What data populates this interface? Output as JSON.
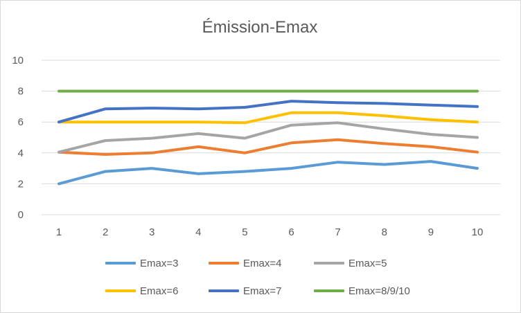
{
  "chart_data": {
    "type": "line",
    "title": "Émission-Emax",
    "xlabel": "",
    "ylabel": "",
    "x": [
      1,
      2,
      3,
      4,
      5,
      6,
      7,
      8,
      9,
      10
    ],
    "x_tick_labels": [
      "1",
      "2",
      "3",
      "4",
      "5",
      "6",
      "7",
      "8",
      "9",
      "10"
    ],
    "ylim": [
      0,
      10
    ],
    "y_tick_labels": [
      "0",
      "2",
      "4",
      "6",
      "8",
      "10"
    ],
    "grid": "horizontal",
    "legend_position": "bottom",
    "series": [
      {
        "name": "Emax=3",
        "color": "#5b9bd5",
        "values": [
          2.0,
          2.8,
          3.0,
          2.65,
          2.8,
          3.0,
          3.4,
          3.25,
          3.45,
          3.0
        ]
      },
      {
        "name": "Emax=4",
        "color": "#ed7d31",
        "values": [
          4.05,
          3.9,
          4.0,
          4.4,
          4.0,
          4.65,
          4.85,
          4.6,
          4.4,
          4.05
        ]
      },
      {
        "name": "Emax=5",
        "color": "#a5a5a5",
        "values": [
          4.05,
          4.8,
          4.95,
          5.25,
          4.95,
          5.8,
          5.95,
          5.55,
          5.2,
          5.0
        ]
      },
      {
        "name": "Emax=6",
        "color": "#ffc000",
        "values": [
          6.0,
          6.0,
          6.0,
          6.0,
          5.95,
          6.6,
          6.6,
          6.4,
          6.15,
          6.0
        ]
      },
      {
        "name": "Emax=7",
        "color": "#4472c4",
        "values": [
          6.0,
          6.85,
          6.9,
          6.85,
          6.95,
          7.35,
          7.25,
          7.2,
          7.1,
          7.0
        ]
      },
      {
        "name": "Emax=8/9/10",
        "color": "#70ad47",
        "values": [
          8.0,
          8.0,
          8.0,
          8.0,
          8.0,
          8.0,
          8.0,
          8.0,
          8.0,
          8.0
        ]
      }
    ]
  }
}
